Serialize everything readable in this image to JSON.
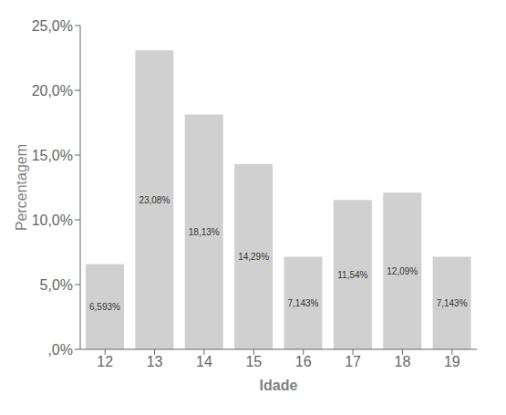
{
  "chart_data": {
    "type": "bar",
    "categories": [
      "12",
      "13",
      "14",
      "15",
      "16",
      "17",
      "18",
      "19"
    ],
    "values": [
      6.593,
      23.08,
      18.13,
      14.29,
      7.143,
      11.54,
      12.09,
      7.143
    ],
    "value_labels": [
      "6,593%",
      "23,08%",
      "18,13%",
      "14,29%",
      "7,143%",
      "11,54%",
      "12,09%",
      "7,143%"
    ],
    "data_labels": true,
    "color": "#d0d0d0",
    "xlabel": "Idade",
    "ylabel": "Percentagem",
    "ylim": [
      0,
      25.0
    ],
    "yticks": [
      {
        "value": 0,
        "label": ",0%"
      },
      {
        "value": 5.0,
        "label": "5,0%"
      },
      {
        "value": 10.0,
        "label": "10,0%"
      },
      {
        "value": 15.0,
        "label": "15,0%"
      },
      {
        "value": 20.0,
        "label": "20,0%"
      },
      {
        "value": 25.0,
        "label": "25,0%"
      }
    ],
    "grid": false
  }
}
